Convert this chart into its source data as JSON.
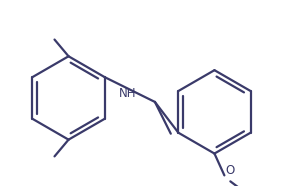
{
  "bg_color": "#ffffff",
  "line_color": "#3a3a6a",
  "line_width": 1.6,
  "nh_fontsize": 8.5,
  "o_fontsize": 8.5,
  "text_color": "#3a3a6a"
}
